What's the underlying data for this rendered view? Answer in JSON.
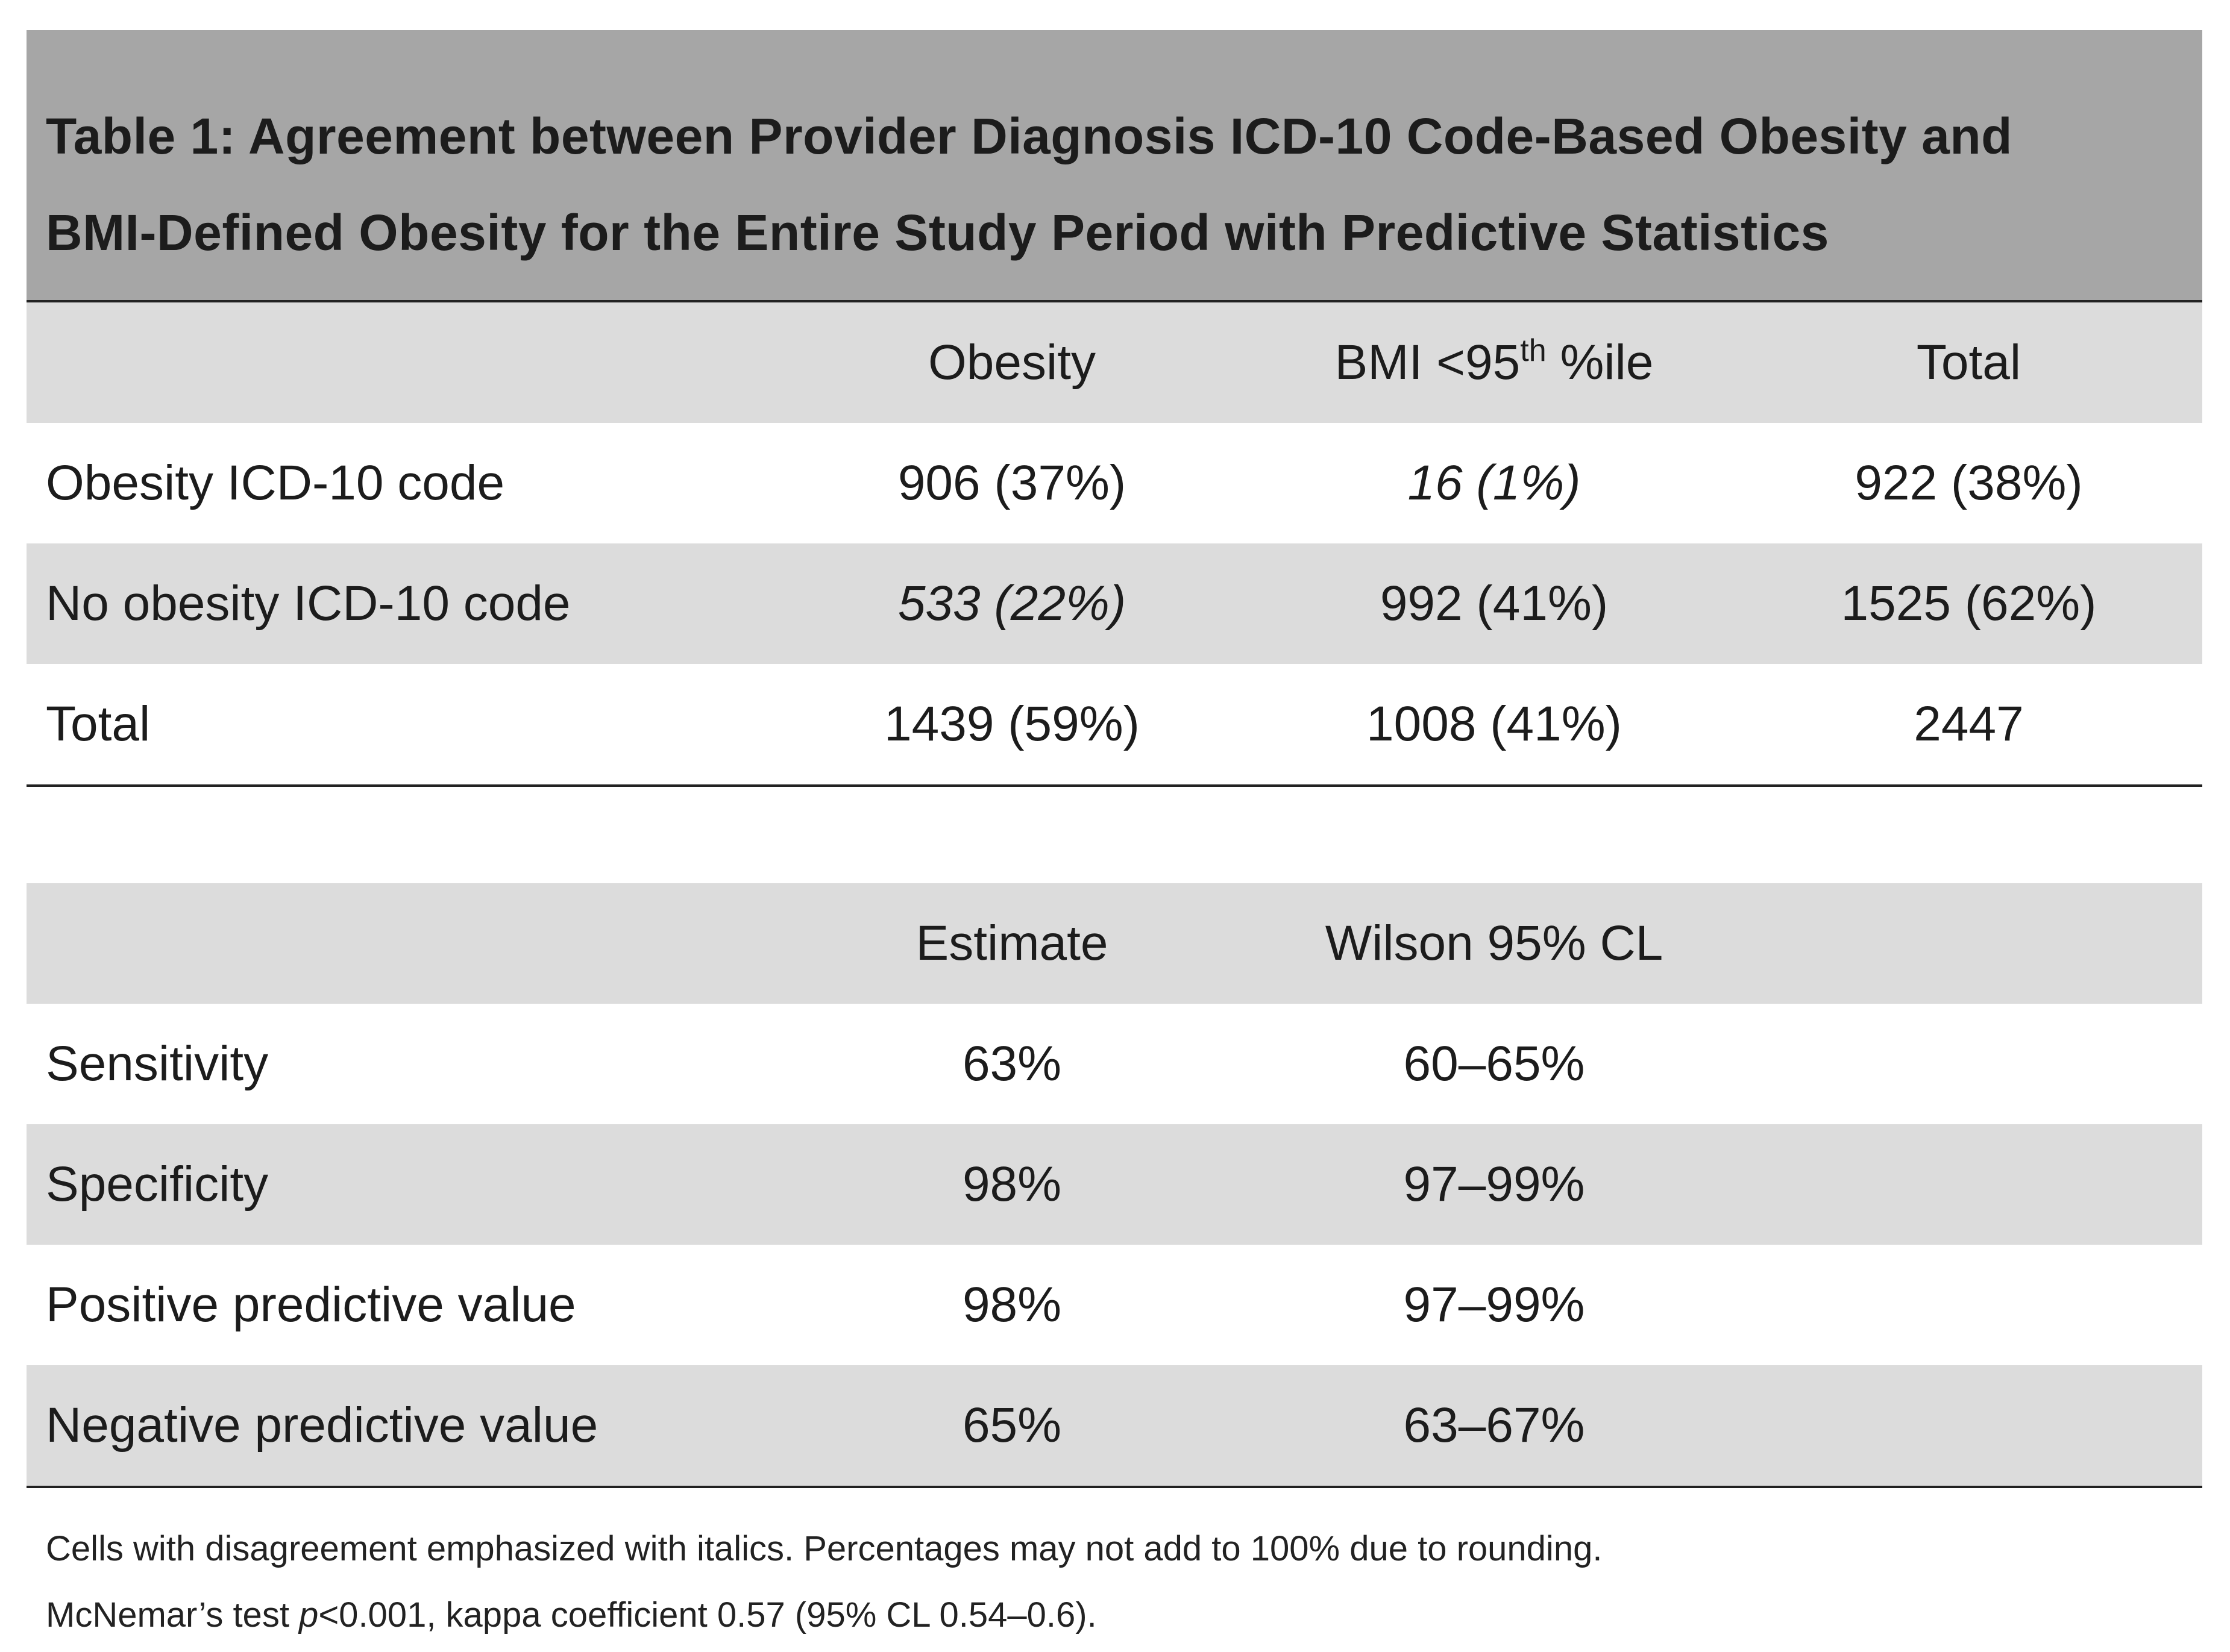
{
  "title": {
    "line1": "Table 1: Agreement between Provider Diagnosis ICD-10 Code-Based Obesity and",
    "line2": "BMI-Defined Obesity for the Entire Study Period with Predictive Statistics"
  },
  "contingency": {
    "headers": {
      "col1": "Obesity",
      "col2_prefix": "BMI <95",
      "col2_sup": "th",
      "col2_suffix": " %ile",
      "col3": "Total"
    },
    "rows": [
      {
        "label": "Obesity ICD-10 code",
        "c1": "906 (37%)",
        "c2": "16 (1%)",
        "c3": "922 (38%)"
      },
      {
        "label": "No obesity ICD-10 code",
        "c1": "533 (22%)",
        "c2": "992 (41%)",
        "c3": "1525 (62%)"
      },
      {
        "label": "Total",
        "c1": "1439 (59%)",
        "c2": "1008 (41%)",
        "c3": "2447"
      }
    ]
  },
  "statistics": {
    "headers": {
      "col1": "Estimate",
      "col2": "Wilson 95% CL"
    },
    "rows": [
      {
        "label": "Sensitivity",
        "estimate": "63%",
        "cl": "60–65%"
      },
      {
        "label": "Specificity",
        "estimate": "98%",
        "cl": "97–99%"
      },
      {
        "label": "Positive predictive value",
        "estimate": "98%",
        "cl": "97–99%"
      },
      {
        "label": "Negative predictive value",
        "estimate": "65%",
        "cl": "63–67%"
      }
    ]
  },
  "notes": {
    "line1": "Cells with disagreement emphasized with italics. Percentages may not add to 100% due to rounding.",
    "line2_prefix": "McNemar’s test ",
    "line2_p": "p",
    "line2_suffix": "<0.001, kappa coefficient 0.57 (95% CL 0.54–0.6)."
  },
  "colors": {
    "title_band": "#a6a6a6",
    "row_shade": "#dcdcdc",
    "rule": "#222222"
  }
}
